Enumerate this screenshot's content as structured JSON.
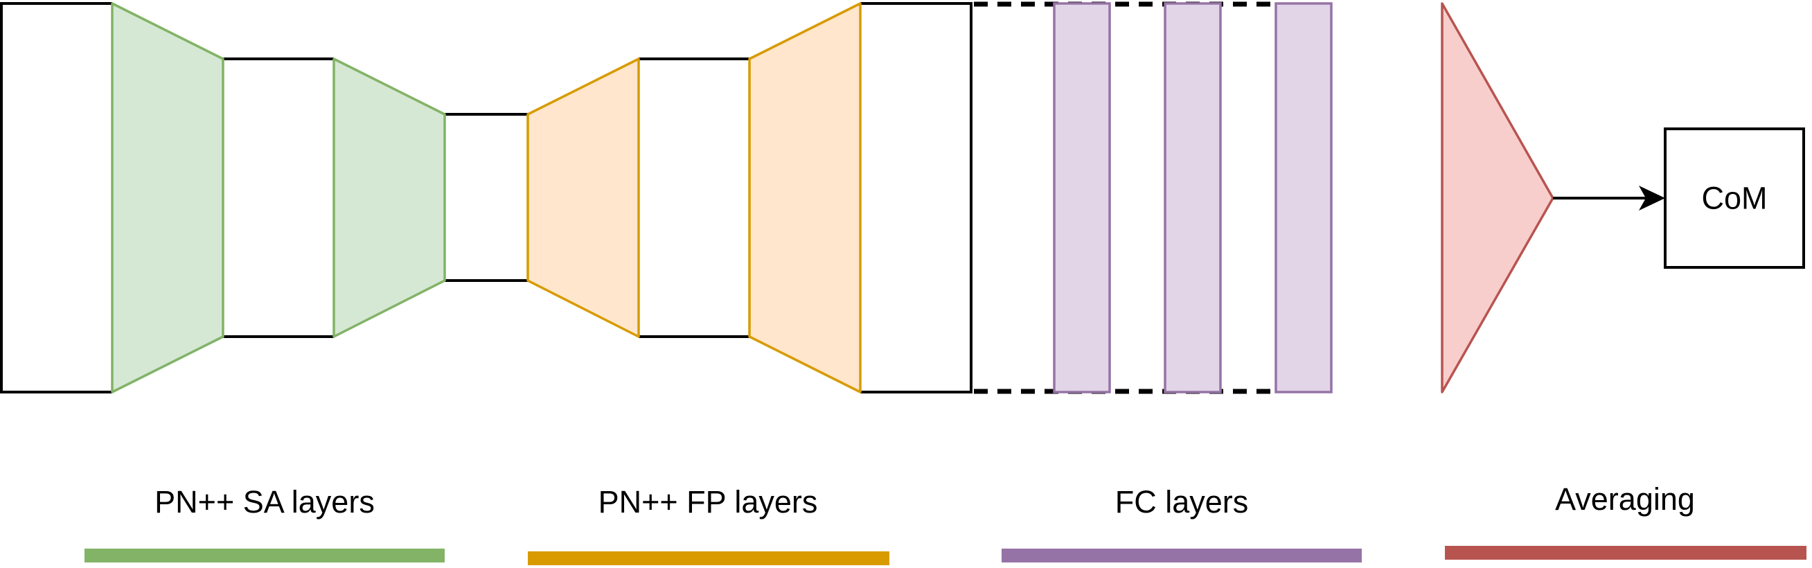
{
  "colors": {
    "outline": "#000000",
    "sa_fill": "#d5e8d4",
    "sa_stroke": "#82b366",
    "fp_fill": "#ffe6cc",
    "fp_stroke": "#d79b00",
    "fc_fill": "#e1d5e7",
    "fc_stroke": "#9673a6",
    "avg_fill": "#f8cecc",
    "avg_stroke": "#b85450"
  },
  "output_box": {
    "label": "CoM"
  },
  "legend": {
    "sa_label": "PN++ SA layers",
    "fp_label": "PN++ FP layers",
    "fc_label": "FC layers",
    "avg_label": "Averaging"
  }
}
